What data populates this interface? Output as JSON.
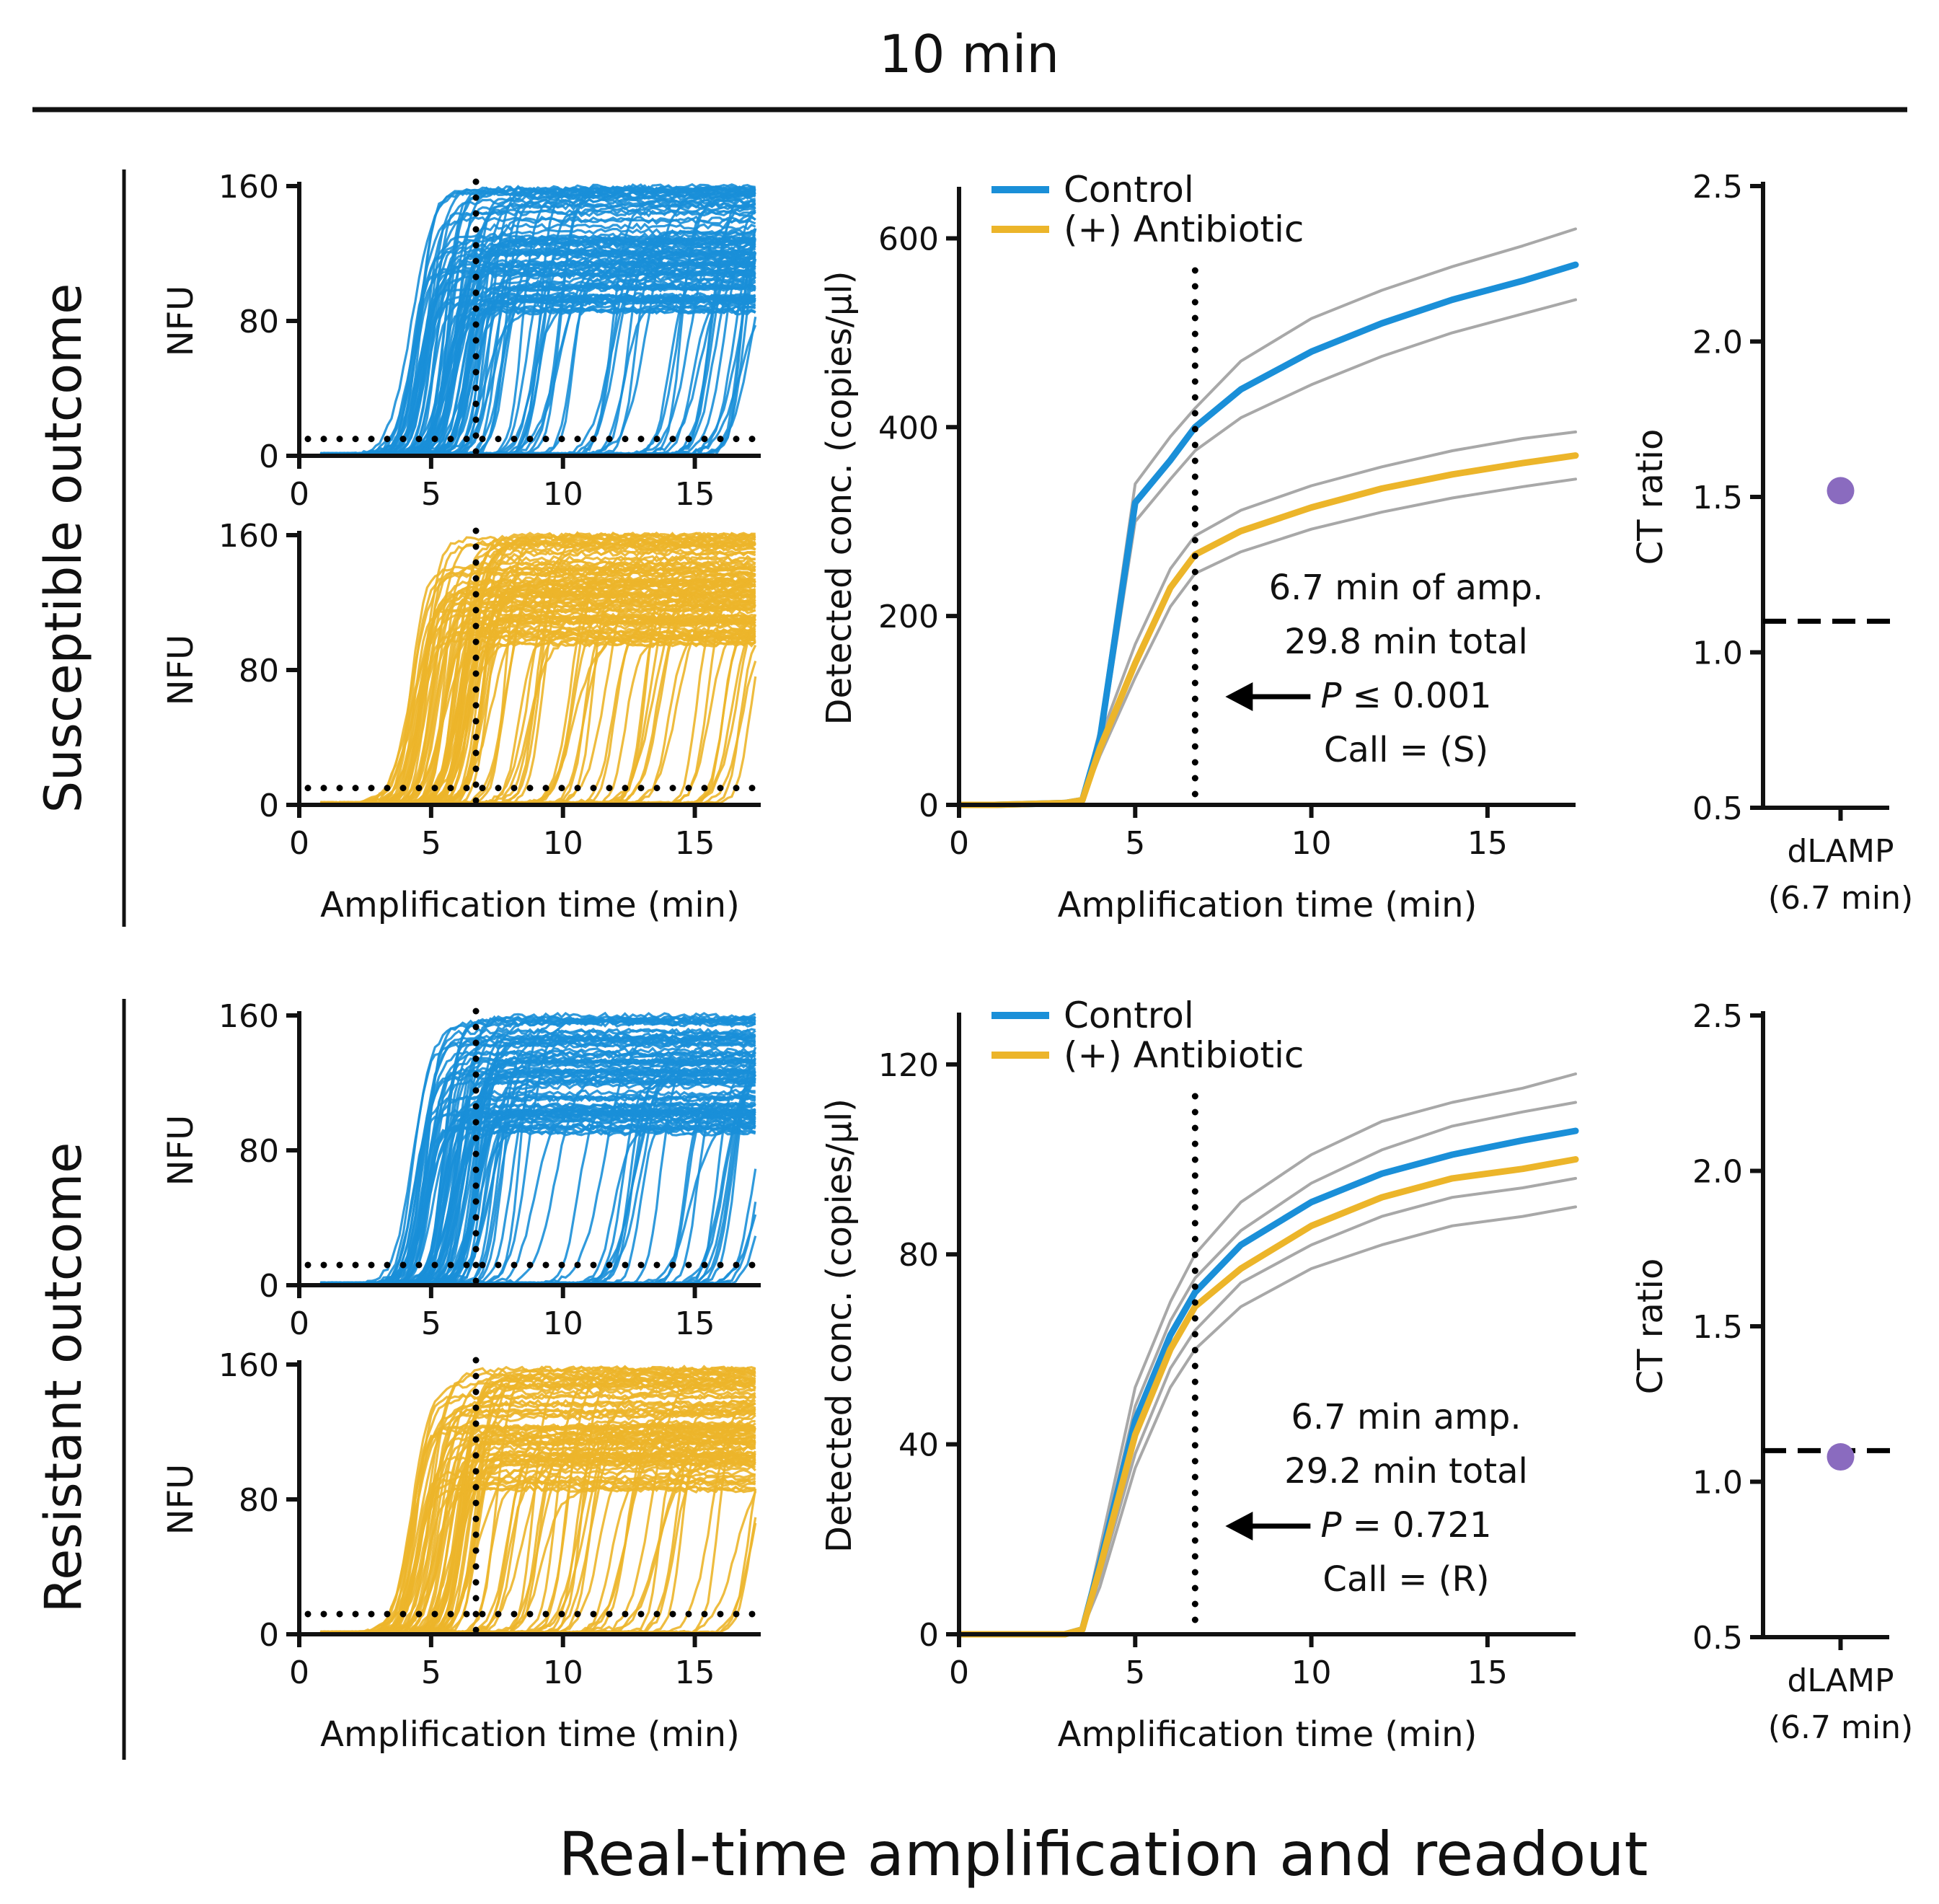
{
  "figure": {
    "title": "10 min",
    "footer": "Real-time amplification and readout"
  },
  "colors": {
    "control": "#1a8fd8",
    "antibiotic": "#ecb52a",
    "confidence_band": "#a8a8a8",
    "ct_point": "#8a6bbf",
    "axis": "#111111"
  },
  "rows": [
    {
      "id": "susceptible",
      "label": "Susceptible outcome"
    },
    {
      "id": "resistant",
      "label": "Resistant outcome"
    }
  ],
  "chart_data": [
    {
      "id": "s-traces-control",
      "type": "line",
      "row": "susceptible",
      "series_name": "Control",
      "xlabel": "Amplification time (min)",
      "ylabel": "NFU",
      "xlim": [
        0,
        17.5
      ],
      "ylim": [
        0,
        160
      ],
      "xticks": [
        0,
        5,
        10,
        15
      ],
      "yticks": [
        0,
        80,
        160
      ],
      "show_xlabel": false,
      "threshold_nfu": 10,
      "readout_time_min": 6.7,
      "trace_count": 120,
      "onset_range_min": [
        3.5,
        17
      ],
      "plateau_range_nfu": [
        85,
        160
      ]
    },
    {
      "id": "s-traces-antibiotic",
      "type": "line",
      "row": "susceptible",
      "series_name": "(+) Antibiotic",
      "xlabel": "Amplification time (min)",
      "ylabel": "NFU",
      "xlim": [
        0,
        17.5
      ],
      "ylim": [
        0,
        160
      ],
      "xticks": [
        0,
        5,
        10,
        15
      ],
      "yticks": [
        0,
        80,
        160
      ],
      "show_xlabel": true,
      "threshold_nfu": 10,
      "readout_time_min": 6.7,
      "trace_count": 110,
      "onset_range_min": [
        3.5,
        17
      ],
      "plateau_range_nfu": [
        95,
        160
      ]
    },
    {
      "id": "s-concentration",
      "type": "line",
      "row": "susceptible",
      "xlabel": "Amplification time (min)",
      "ylabel": "Detected conc. (copies/µl)",
      "xlim": [
        0,
        17.5
      ],
      "ylim": [
        0,
        650
      ],
      "xticks": [
        0,
        5,
        10,
        15
      ],
      "yticks": [
        0,
        200,
        400,
        600
      ],
      "readout_time_min": 6.7,
      "legend": [
        "Control",
        "(+) Antibiotic"
      ],
      "x": [
        0,
        1,
        2,
        3,
        3.5,
        4,
        5,
        6,
        6.7,
        8,
        10,
        12,
        14,
        16,
        17.5
      ],
      "series": [
        {
          "name": "Control",
          "role": "mean",
          "color_key": "control",
          "values": [
            0,
            0,
            1,
            2,
            5,
            70,
            320,
            365,
            400,
            440,
            480,
            510,
            535,
            555,
            572
          ]
        },
        {
          "name": "Control upper",
          "role": "band",
          "color_key": "confidence_band",
          "values": [
            0,
            0,
            1,
            2,
            6,
            80,
            340,
            390,
            420,
            470,
            515,
            545,
            570,
            592,
            610
          ]
        },
        {
          "name": "Control lower",
          "role": "band",
          "color_key": "confidence_band",
          "values": [
            0,
            0,
            1,
            2,
            4,
            60,
            300,
            345,
            375,
            410,
            445,
            475,
            500,
            520,
            535
          ]
        },
        {
          "name": "(+) Antibiotic",
          "role": "mean",
          "color_key": "antibiotic",
          "values": [
            0,
            0,
            1,
            2,
            5,
            60,
            150,
            230,
            265,
            290,
            315,
            335,
            350,
            362,
            370
          ]
        },
        {
          "name": "(+) Antibiotic upper",
          "role": "band",
          "color_key": "confidence_band",
          "values": [
            0,
            0,
            1,
            2,
            6,
            70,
            170,
            250,
            285,
            312,
            338,
            358,
            375,
            388,
            395
          ]
        },
        {
          "name": "(+) Antibiotic lower",
          "role": "band",
          "color_key": "confidence_band",
          "values": [
            0,
            0,
            1,
            2,
            4,
            52,
            135,
            210,
            245,
            268,
            292,
            310,
            325,
            337,
            345
          ]
        }
      ],
      "annotation": {
        "line1": "6.7 min of amp.",
        "line2": "29.8 min total",
        "p_symbol": "P",
        "p_rest": " ≤ 0.001",
        "call": "Call = (S)"
      }
    },
    {
      "id": "s-ct-ratio",
      "type": "scatter",
      "row": "susceptible",
      "ylabel": "CT ratio",
      "ylim": [
        0.5,
        2.5
      ],
      "yticks": [
        "0.5",
        "1.0",
        "1.5",
        "2.0",
        "2.5"
      ],
      "category_line1": "dLAMP",
      "category_line2": "(6.7 min)",
      "value": 1.52,
      "threshold": 1.1
    },
    {
      "id": "r-traces-control",
      "type": "line",
      "row": "resistant",
      "series_name": "Control",
      "xlabel": "Amplification time (min)",
      "ylabel": "NFU",
      "xlim": [
        0,
        17.5
      ],
      "ylim": [
        0,
        160
      ],
      "xticks": [
        0,
        5,
        10,
        15
      ],
      "yticks": [
        0,
        80,
        160
      ],
      "show_xlabel": false,
      "threshold_nfu": 12,
      "readout_time_min": 6.7,
      "trace_count": 110,
      "onset_range_min": [
        3.5,
        17
      ],
      "plateau_range_nfu": [
        90,
        160
      ]
    },
    {
      "id": "r-traces-antibiotic",
      "type": "line",
      "row": "resistant",
      "series_name": "(+) Antibiotic",
      "xlabel": "Amplification time (min)",
      "ylabel": "NFU",
      "xlim": [
        0,
        17.5
      ],
      "ylim": [
        0,
        160
      ],
      "xticks": [
        0,
        5,
        10,
        15
      ],
      "yticks": [
        0,
        80,
        160
      ],
      "show_xlabel": true,
      "threshold_nfu": 12,
      "readout_time_min": 6.7,
      "trace_count": 100,
      "onset_range_min": [
        3.5,
        17
      ],
      "plateau_range_nfu": [
        85,
        158
      ]
    },
    {
      "id": "r-concentration",
      "type": "line",
      "row": "resistant",
      "xlabel": "Amplification time (min)",
      "ylabel": "Detected conc. (copies/µl)",
      "xlim": [
        0,
        17.5
      ],
      "ylim": [
        0,
        130
      ],
      "xticks": [
        0,
        5,
        10,
        15
      ],
      "yticks": [
        0,
        40,
        80,
        120
      ],
      "readout_time_min": 6.7,
      "legend": [
        "Control",
        "(+) Antibiotic"
      ],
      "x": [
        0,
        1,
        2,
        3,
        3.5,
        4,
        5,
        6,
        6.7,
        8,
        10,
        12,
        14,
        16,
        17.5
      ],
      "series": [
        {
          "name": "Control",
          "role": "mean",
          "color_key": "control",
          "values": [
            0,
            0,
            0,
            0,
            1,
            15,
            45,
            63,
            72,
            82,
            91,
            97,
            101,
            104,
            106
          ]
        },
        {
          "name": "Control upper",
          "role": "band",
          "color_key": "confidence_band",
          "values": [
            0,
            0,
            0,
            0,
            1,
            18,
            52,
            70,
            80,
            91,
            101,
            108,
            112,
            115,
            118
          ]
        },
        {
          "name": "Control lower",
          "role": "band",
          "color_key": "confidence_band",
          "values": [
            0,
            0,
            0,
            0,
            1,
            12,
            38,
            56,
            64,
            74,
            82,
            88,
            92,
            94,
            96
          ]
        },
        {
          "name": "(+) Antibiotic",
          "role": "mean",
          "color_key": "antibiotic",
          "values": [
            0,
            0,
            0,
            0,
            1,
            14,
            42,
            60,
            69,
            77,
            86,
            92,
            96,
            98,
            100
          ]
        },
        {
          "name": "(+) Antibiotic upper",
          "role": "band",
          "color_key": "confidence_band",
          "values": [
            0,
            0,
            0,
            0,
            1,
            16,
            48,
            66,
            75,
            85,
            95,
            102,
            107,
            110,
            112
          ]
        },
        {
          "name": "(+) Antibiotic lower",
          "role": "band",
          "color_key": "confidence_band",
          "values": [
            0,
            0,
            0,
            0,
            1,
            10,
            35,
            52,
            60,
            69,
            77,
            82,
            86,
            88,
            90
          ]
        }
      ],
      "annotation": {
        "line1": "6.7 min amp.",
        "line2": "29.2 min total",
        "p_symbol": "P",
        "p_rest": " = 0.721",
        "call": "Call = (R)"
      }
    },
    {
      "id": "r-ct-ratio",
      "type": "scatter",
      "row": "resistant",
      "ylabel": "CT ratio",
      "ylim": [
        0.5,
        2.5
      ],
      "yticks": [
        "0.5",
        "1.0",
        "1.5",
        "2.0",
        "2.5"
      ],
      "category_line1": "dLAMP",
      "category_line2": "(6.7 min)",
      "value": 1.08,
      "threshold": 1.1
    }
  ]
}
